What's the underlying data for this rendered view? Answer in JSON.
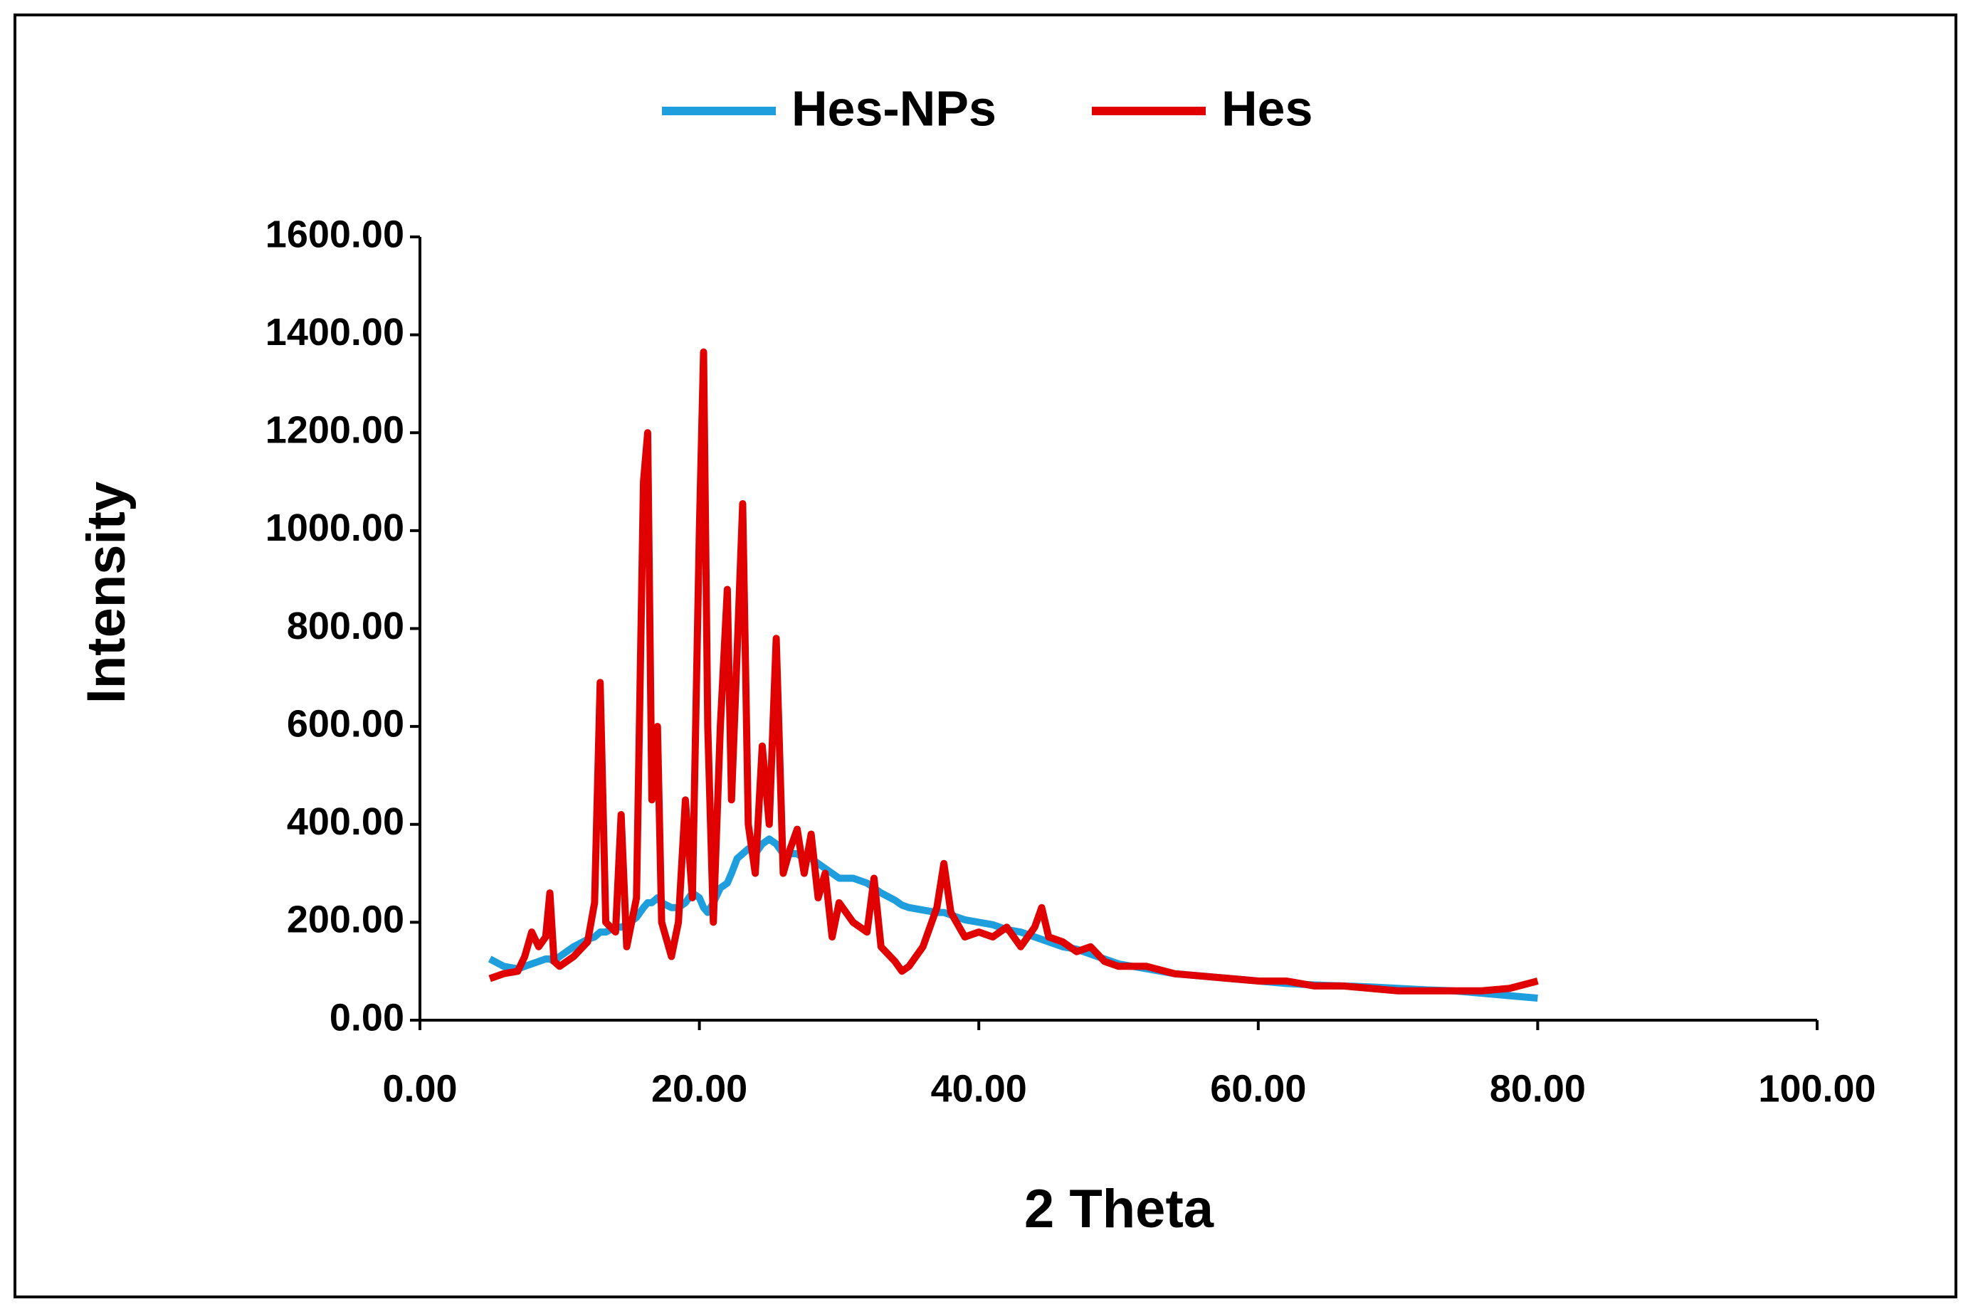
{
  "chart_data": {
    "type": "line",
    "xlabel": "2 Theta",
    "ylabel": "Intensity",
    "legend": "top",
    "xlim": [
      0,
      100
    ],
    "ylim": [
      0,
      1600
    ],
    "xticks": [
      {
        "value": 0,
        "label": "0.00"
      },
      {
        "value": 20,
        "label": "20.00"
      },
      {
        "value": 40,
        "label": "40.00"
      },
      {
        "value": 60,
        "label": "60.00"
      },
      {
        "value": 80,
        "label": "80.00"
      },
      {
        "value": 100,
        "label": "100.00"
      }
    ],
    "yticks": [
      {
        "value": 0,
        "label": "0.00"
      },
      {
        "value": 200,
        "label": "200.00"
      },
      {
        "value": 400,
        "label": "400.00"
      },
      {
        "value": 600,
        "label": "600.00"
      },
      {
        "value": 800,
        "label": "800.00"
      },
      {
        "value": 1000,
        "label": "1000.00"
      },
      {
        "value": 1200,
        "label": "1200.00"
      },
      {
        "value": 1400,
        "label": "1400.00"
      },
      {
        "value": 1600,
        "label": "1600.00"
      }
    ],
    "x": [
      5,
      6,
      7,
      7.5,
      8,
      8.5,
      9,
      9.3,
      9.6,
      10,
      11,
      12,
      12.5,
      12.9,
      13.3,
      14,
      14.4,
      14.8,
      15.5,
      16,
      16.3,
      16.6,
      17,
      17.3,
      18,
      18.5,
      19,
      19.5,
      20,
      20.3,
      20.6,
      21,
      21.5,
      22,
      22.3,
      22.7,
      23.1,
      23.5,
      24,
      24.5,
      25,
      25.5,
      26,
      26.5,
      27,
      27.5,
      28,
      28.5,
      29,
      29.5,
      30,
      31,
      32,
      32.5,
      33,
      34,
      34.5,
      35,
      36,
      37,
      37.5,
      38,
      39,
      40,
      41,
      42,
      43,
      44,
      44.5,
      45,
      46,
      47,
      48,
      49,
      50,
      52,
      54,
      56,
      58,
      60,
      62,
      64,
      66,
      68,
      70,
      72,
      74,
      76,
      78,
      80
    ],
    "series": [
      {
        "name": "Hes-NPs",
        "color": "#1f9ede",
        "values": [
          125,
          110,
          105,
          110,
          115,
          120,
          125,
          125,
          120,
          130,
          150,
          165,
          170,
          180,
          180,
          190,
          190,
          195,
          210,
          230,
          240,
          240,
          250,
          240,
          230,
          230,
          240,
          260,
          250,
          230,
          220,
          240,
          270,
          280,
          300,
          330,
          340,
          350,
          340,
          360,
          370,
          360,
          340,
          340,
          340,
          330,
          330,
          320,
          310,
          300,
          290,
          290,
          280,
          270,
          260,
          245,
          235,
          230,
          225,
          220,
          220,
          215,
          205,
          200,
          195,
          185,
          180,
          170,
          165,
          160,
          150,
          145,
          135,
          125,
          115,
          105,
          95,
          90,
          85,
          80,
          75,
          72,
          70,
          68,
          65,
          62,
          60,
          55,
          50,
          45
        ]
      },
      {
        "name": "Hes",
        "color": "#e00000",
        "values": [
          85,
          95,
          100,
          130,
          180,
          150,
          170,
          260,
          120,
          110,
          130,
          160,
          240,
          690,
          200,
          180,
          420,
          150,
          250,
          1100,
          1200,
          450,
          600,
          200,
          130,
          200,
          450,
          250,
          1000,
          1365,
          600,
          200,
          600,
          880,
          450,
          750,
          1055,
          400,
          300,
          560,
          400,
          780,
          300,
          350,
          390,
          300,
          380,
          250,
          300,
          170,
          240,
          200,
          180,
          290,
          150,
          120,
          100,
          110,
          150,
          230,
          320,
          220,
          170,
          180,
          170,
          190,
          150,
          190,
          230,
          170,
          160,
          140,
          150,
          120,
          110,
          110,
          95,
          90,
          85,
          80,
          80,
          70,
          70,
          65,
          60,
          60,
          60,
          60,
          65,
          80
        ]
      }
    ]
  }
}
